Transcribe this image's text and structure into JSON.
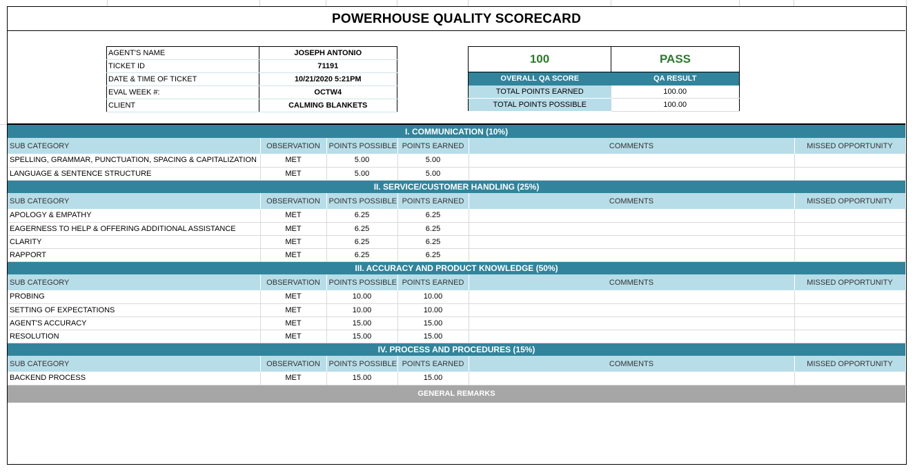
{
  "title": "POWERHOUSE QUALITY SCORECARD",
  "agent_info": [
    {
      "label": "AGENT'S NAME",
      "value": "JOSEPH ANTONIO"
    },
    {
      "label": "TICKET ID",
      "value": "71191"
    },
    {
      "label": "DATE & TIME OF TICKET",
      "value": "10/21/2020 5:21PM"
    },
    {
      "label": "EVAL WEEK #:",
      "value": "OCTW4"
    },
    {
      "label": "CLIENT",
      "value": "CALMING BLANKETS"
    }
  ],
  "score": {
    "overall": "100",
    "result": "PASS",
    "overall_label": "OVERALL QA SCORE",
    "result_label": "QA RESULT",
    "earned_label": "TOTAL POINTS EARNED",
    "earned_value": "100.00",
    "possible_label": "TOTAL POINTS POSSIBLE",
    "possible_value": "100.00"
  },
  "headers": {
    "sub_category": "SUB CATEGORY",
    "observation": "OBSERVATION",
    "points_possible": "POINTS POSSIBLE",
    "points_earned": "POINTS EARNED",
    "comments": "COMMENTS",
    "missed": "MISSED OPPORTUNITY"
  },
  "sections": [
    {
      "title": "I. COMMUNICATION (10%)",
      "rows": [
        {
          "sub": "SPELLING, GRAMMAR, PUNCTUATION, SPACING & CAPITALIZATION",
          "obs": "MET",
          "possible": "5.00",
          "earned": "5.00"
        },
        {
          "sub": "LANGUAGE & SENTENCE STRUCTURE",
          "obs": "MET",
          "possible": "5.00",
          "earned": "5.00"
        }
      ]
    },
    {
      "title": "II. SERVICE/CUSTOMER HANDLING (25%)",
      "rows": [
        {
          "sub": "APOLOGY & EMPATHY",
          "obs": "MET",
          "possible": "6.25",
          "earned": "6.25"
        },
        {
          "sub": "EAGERNESS TO HELP & OFFERING ADDITIONAL ASSISTANCE",
          "obs": "MET",
          "possible": "6.25",
          "earned": "6.25"
        },
        {
          "sub": "CLARITY",
          "obs": "MET",
          "possible": "6.25",
          "earned": "6.25"
        },
        {
          "sub": "RAPPORT",
          "obs": "MET",
          "possible": "6.25",
          "earned": "6.25"
        }
      ]
    },
    {
      "title": "III. ACCURACY AND PRODUCT KNOWLEDGE (50%)",
      "rows": [
        {
          "sub": "PROBING",
          "obs": "MET",
          "possible": "10.00",
          "earned": "10.00"
        },
        {
          "sub": "SETTING OF EXPECTATIONS",
          "obs": "MET",
          "possible": "10.00",
          "earned": "10.00"
        },
        {
          "sub": "AGENT'S ACCURACY",
          "obs": "MET",
          "possible": "15.00",
          "earned": "15.00"
        },
        {
          "sub": "RESOLUTION",
          "obs": "MET",
          "possible": "15.00",
          "earned": "15.00"
        }
      ]
    },
    {
      "title": "IV. PROCESS AND PROCEDURES (15%)",
      "rows": [
        {
          "sub": "BACKEND PROCESS",
          "obs": "MET",
          "possible": "15.00",
          "earned": "15.00"
        }
      ]
    }
  ],
  "general_remarks": "GENERAL REMARKS",
  "colors": {
    "section": "#31849b",
    "header": "#b7dde8",
    "remarks": "#a6a6a6",
    "pass": "#2a7a2a"
  }
}
